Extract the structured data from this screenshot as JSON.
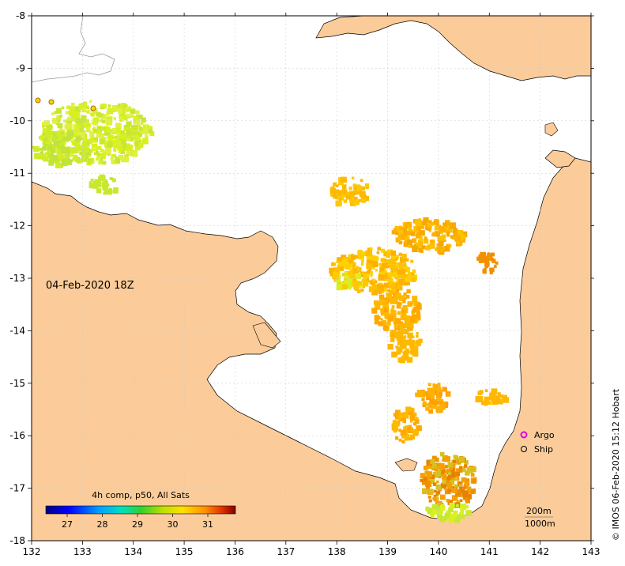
{
  "map": {
    "date_label": "04-Feb-2020 18Z",
    "colorbar_title": "4h comp, p50, All Sats",
    "colorbar_ticks": [
      "27",
      "28",
      "29",
      "30",
      "31"
    ],
    "x_ticks": [
      "132",
      "133",
      "134",
      "135",
      "136",
      "137",
      "138",
      "139",
      "140",
      "141",
      "142",
      "143"
    ],
    "y_ticks": [
      "-8",
      "-9",
      "-10",
      "-11",
      "-12",
      "-13",
      "-14",
      "-15",
      "-16",
      "-17",
      "-18"
    ],
    "legend": {
      "argo": "Argo",
      "ship": "Ship"
    },
    "scale": {
      "depth1": "200m",
      "depth2": "1000m"
    },
    "copyright": "© IMOS 06-Feb-2020 15:12 Hobart",
    "colors": {
      "land": "#fbcc99",
      "ocean": "#ffffff",
      "argo_marker": "#e000e0"
    }
  }
}
